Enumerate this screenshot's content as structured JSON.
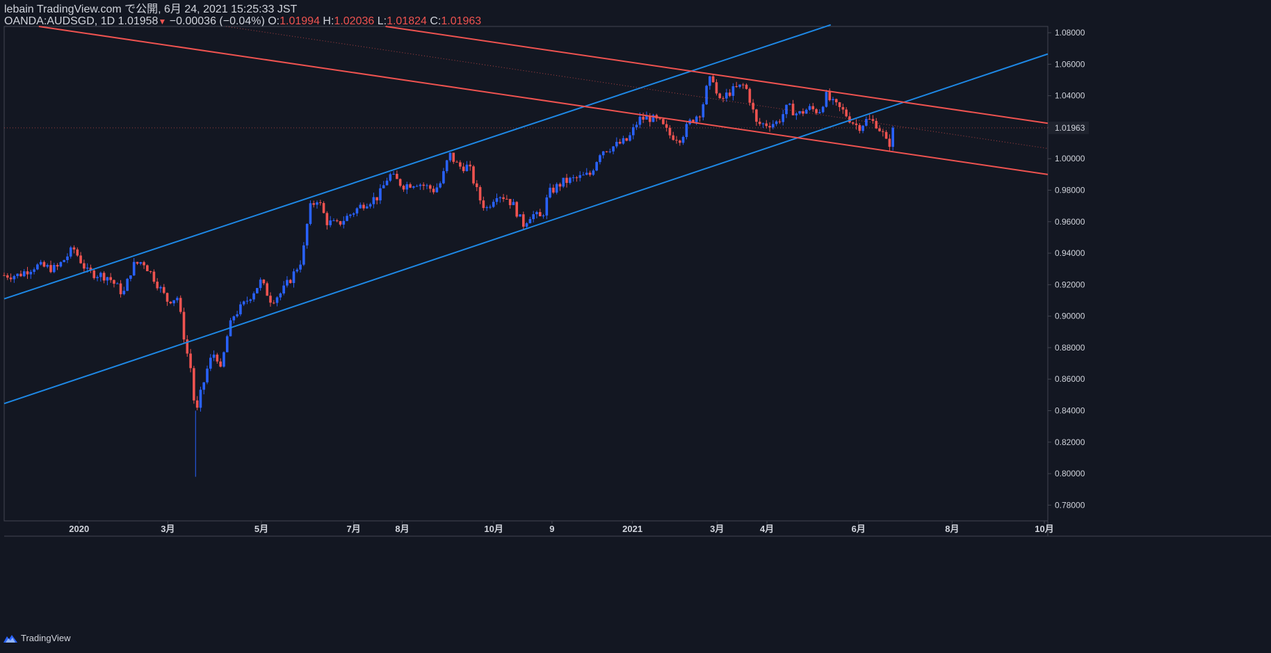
{
  "header": {
    "line1": "lebain TradingView.com で公開, 6月 24, 2021 15:25:33 JST",
    "symbol": "OANDA:AUDSGD, 1D",
    "last": "1.01958",
    "arrow": "▼",
    "change": "−0.00036 (−0.04%)",
    "o_label": "O:",
    "o_value": "1.01994",
    "h_label": "H:",
    "h_value": "1.02036",
    "l_label": "L:",
    "l_value": "1.01824",
    "c_label": "C:",
    "c_value": "1.01963"
  },
  "footer": {
    "brand": "TradingView"
  },
  "colors": {
    "background": "#131722",
    "up": "#2962ff",
    "down": "#ef5350",
    "upline": "#1e88e5",
    "text": "#d1d4dc",
    "border": "#434651"
  },
  "chart_data": {
    "type": "candlestick",
    "symbol": "OANDA:AUDSGD",
    "interval": "1D",
    "ylim": [
      0.77,
      1.084
    ],
    "xlim": [
      0,
      1505
    ],
    "y_ticks": [
      1.08,
      1.06,
      1.04,
      1.02,
      1.0,
      0.98,
      0.96,
      0.94,
      0.92,
      0.9,
      0.88,
      0.86,
      0.84,
      0.82,
      0.8,
      0.78
    ],
    "y_tick_labels": [
      "1.08000",
      "1.06000",
      "1.04000",
      "1.02000",
      "1.00000",
      "0.98000",
      "0.96000",
      "0.94000",
      "0.92000",
      "0.90000",
      "0.88000",
      "0.86000",
      "0.84000",
      "0.82000",
      "0.80000",
      "0.78000"
    ],
    "x_ticks": [
      {
        "label": "2020",
        "x": 108
      },
      {
        "label": "3月",
        "x": 236
      },
      {
        "label": "5月",
        "x": 371
      },
      {
        "label": "7月",
        "x": 504
      },
      {
        "label": "8月",
        "x": 574
      },
      {
        "label": "10月",
        "x": 706
      },
      {
        "label": "9",
        "x": 790
      },
      {
        "label": "2021",
        "x": 906
      },
      {
        "label": "3月",
        "x": 1028
      },
      {
        "label": "4月",
        "x": 1100
      },
      {
        "label": "6月",
        "x": 1232
      },
      {
        "label": "8月",
        "x": 1367
      },
      {
        "label": "10月",
        "x": 1500
      }
    ],
    "last_price_label": "1.01963",
    "last_price": 1.0196,
    "price_path": [
      [
        0,
        0.926
      ],
      [
        20,
        0.926
      ],
      [
        45,
        0.932
      ],
      [
        75,
        0.93
      ],
      [
        100,
        0.943
      ],
      [
        120,
        0.928
      ],
      [
        150,
        0.925
      ],
      [
        172,
        0.914
      ],
      [
        185,
        0.932
      ],
      [
        200,
        0.935
      ],
      [
        215,
        0.925
      ],
      [
        235,
        0.91
      ],
      [
        250,
        0.912
      ],
      [
        262,
        0.88
      ],
      [
        270,
        0.865
      ],
      [
        276,
        0.835
      ],
      [
        283,
        0.85
      ],
      [
        295,
        0.87
      ],
      [
        305,
        0.878
      ],
      [
        312,
        0.865
      ],
      [
        322,
        0.888
      ],
      [
        330,
        0.9
      ],
      [
        345,
        0.907
      ],
      [
        360,
        0.916
      ],
      [
        370,
        0.922
      ],
      [
        385,
        0.91
      ],
      [
        400,
        0.915
      ],
      [
        415,
        0.925
      ],
      [
        430,
        0.937
      ],
      [
        440,
        0.968
      ],
      [
        452,
        0.975
      ],
      [
        465,
        0.96
      ],
      [
        480,
        0.958
      ],
      [
        500,
        0.965
      ],
      [
        520,
        0.972
      ],
      [
        540,
        0.976
      ],
      [
        555,
        0.99
      ],
      [
        575,
        0.983
      ],
      [
        595,
        0.985
      ],
      [
        620,
        0.98
      ],
      [
        630,
        0.985
      ],
      [
        642,
        1.003
      ],
      [
        655,
        0.995
      ],
      [
        670,
        0.995
      ],
      [
        685,
        0.975
      ],
      [
        695,
        0.968
      ],
      [
        710,
        0.978
      ],
      [
        725,
        0.975
      ],
      [
        735,
        0.97
      ],
      [
        748,
        0.958
      ],
      [
        760,
        0.965
      ],
      [
        775,
        0.962
      ],
      [
        785,
        0.978
      ],
      [
        805,
        0.985
      ],
      [
        830,
        0.988
      ],
      [
        845,
        0.99
      ],
      [
        860,
        1.005
      ],
      [
        880,
        1.008
      ],
      [
        900,
        1.012
      ],
      [
        915,
        1.025
      ],
      [
        930,
        1.026
      ],
      [
        945,
        1.023
      ],
      [
        960,
        1.015
      ],
      [
        975,
        1.013
      ],
      [
        990,
        1.024
      ],
      [
        1005,
        1.03
      ],
      [
        1015,
        1.048
      ],
      [
        1022,
        1.052
      ],
      [
        1030,
        1.035
      ],
      [
        1045,
        1.042
      ],
      [
        1058,
        1.045
      ],
      [
        1068,
        1.047
      ],
      [
        1075,
        1.038
      ],
      [
        1085,
        1.022
      ],
      [
        1100,
        1.022
      ],
      [
        1115,
        1.023
      ],
      [
        1130,
        1.033
      ],
      [
        1145,
        1.028
      ],
      [
        1160,
        1.032
      ],
      [
        1175,
        1.03
      ],
      [
        1185,
        1.04
      ],
      [
        1195,
        1.035
      ],
      [
        1210,
        1.03
      ],
      [
        1222,
        1.024
      ],
      [
        1232,
        1.02
      ],
      [
        1245,
        1.025
      ],
      [
        1258,
        1.022
      ],
      [
        1268,
        1.015
      ],
      [
        1275,
        1.007
      ],
      [
        1283,
        1.02
      ]
    ],
    "lines": [
      {
        "name": "blue-channel-upper",
        "color": "#1e88e5",
        "from": [
          0,
          0.911
        ],
        "to": [
          1192,
          1.085
        ]
      },
      {
        "name": "blue-channel-lower",
        "color": "#1e88e5",
        "from": [
          0,
          0.8445
        ],
        "to": [
          1505,
          1.0665
        ]
      },
      {
        "name": "red-channel-upper",
        "color": "#ef5350",
        "from": [
          550,
          1.084
        ],
        "to": [
          1505,
          1.0225
        ]
      },
      {
        "name": "red-channel-lower",
        "color": "#ef5350",
        "from": [
          50,
          1.084
        ],
        "to": [
          1505,
          0.99
        ]
      },
      {
        "name": "red-channel-midline",
        "color": "#ef5350",
        "from": [
          320,
          1.084
        ],
        "to": [
          1505,
          1.0065
        ],
        "dotted": true
      }
    ]
  }
}
